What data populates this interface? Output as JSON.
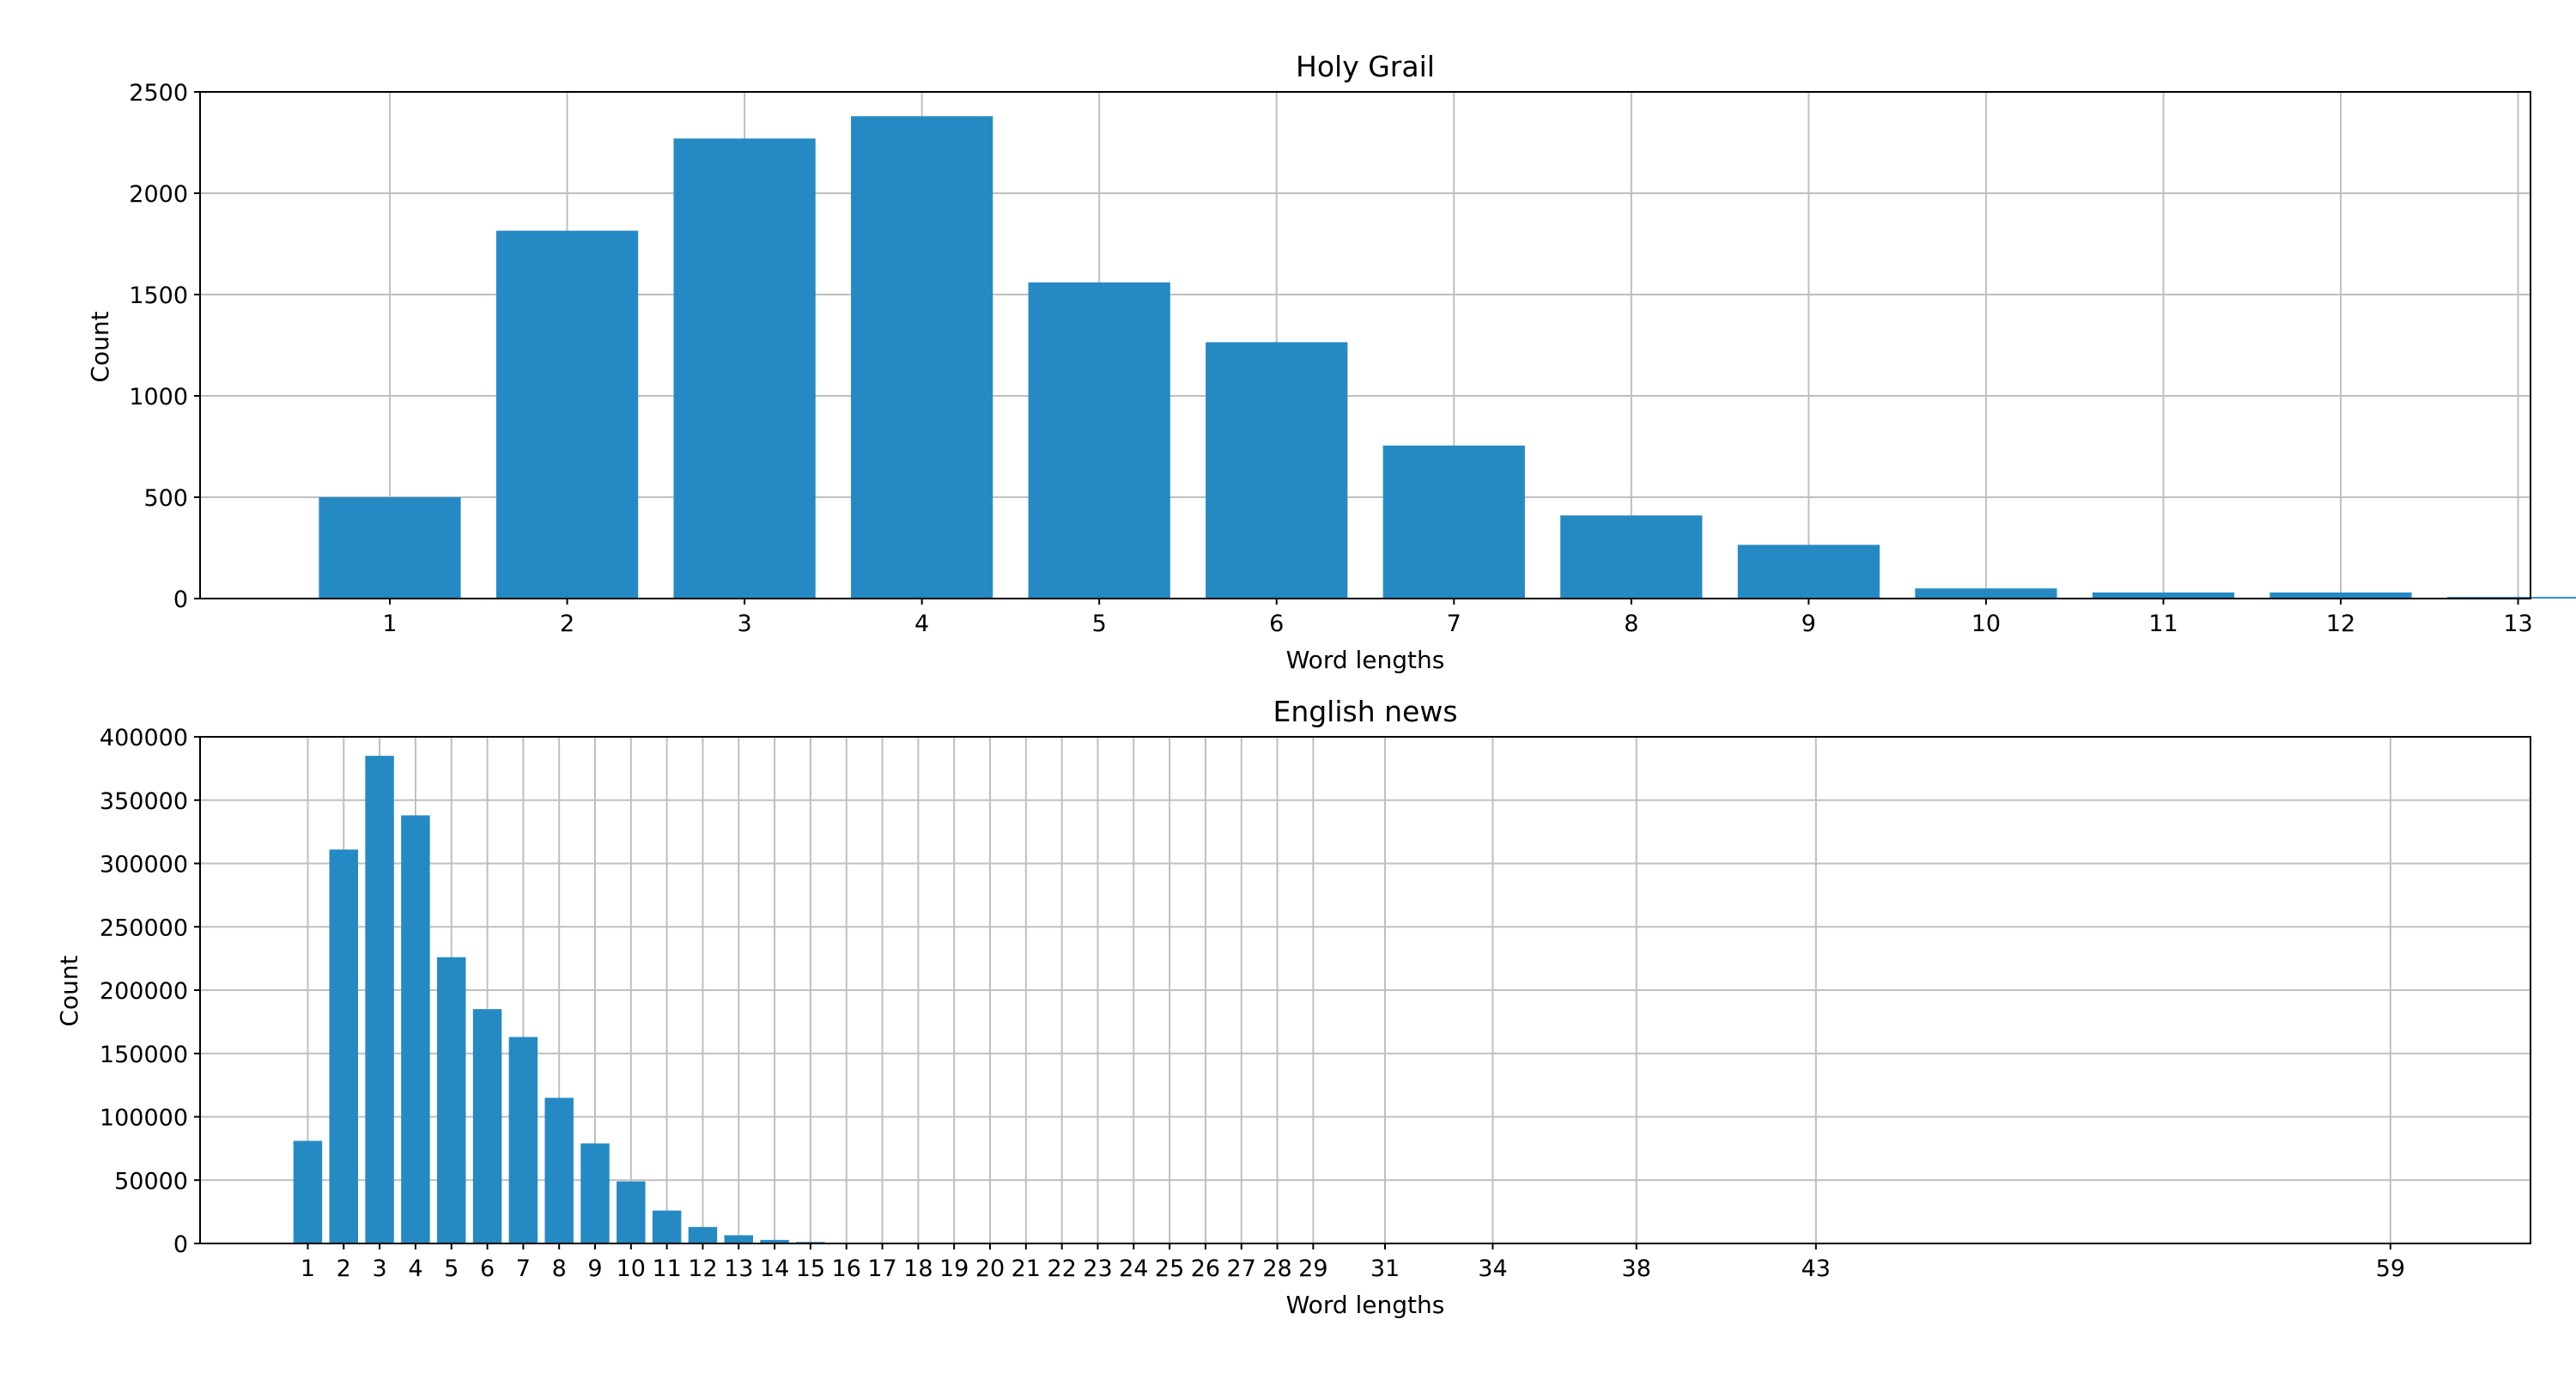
{
  "chart_data": [
    {
      "type": "bar",
      "title": "Holy Grail",
      "xlabel": "Word lengths",
      "ylabel": "Count",
      "color": "#258ac3",
      "grid": true,
      "ylim": [
        0,
        2500
      ],
      "yticks": [
        0,
        500,
        1000,
        1500,
        2000,
        2500
      ],
      "xlim": [
        -0.07,
        13.07
      ],
      "bar_width": 0.8,
      "categories": [
        "1",
        "2",
        "3",
        "4",
        "5",
        "6",
        "7",
        "8",
        "9",
        "10",
        "11",
        "12",
        "13"
      ],
      "values": [
        500,
        1815,
        2270,
        2380,
        1560,
        1265,
        755,
        410,
        265,
        50,
        30,
        30,
        8
      ]
    },
    {
      "type": "bar",
      "title": "English news",
      "xlabel": "Word lengths",
      "ylabel": "Count",
      "color": "#258ac3",
      "grid": true,
      "ylim": [
        0,
        400000
      ],
      "yticks": [
        0,
        50000,
        100000,
        150000,
        200000,
        250000,
        300000,
        350000,
        400000
      ],
      "xlim": [
        -2.0,
        62.9
      ],
      "bar_width": 0.8,
      "categories": [
        "1",
        "2",
        "3",
        "4",
        "5",
        "6",
        "7",
        "8",
        "9",
        "10",
        "11",
        "12",
        "13",
        "14",
        "15",
        "16",
        "17",
        "18",
        "19",
        "20",
        "21",
        "22",
        "23",
        "24",
        "25",
        "26",
        "27",
        "28",
        "29",
        "31",
        "34",
        "38",
        "43",
        "59"
      ],
      "values": [
        81000,
        311000,
        385000,
        338000,
        226000,
        185000,
        163000,
        115000,
        79000,
        49000,
        26000,
        13000,
        6500,
        2800,
        1200,
        500,
        250,
        120,
        80,
        50,
        30,
        20,
        15,
        10,
        8,
        5,
        5,
        3,
        3,
        2,
        1,
        1,
        1,
        1
      ]
    }
  ]
}
